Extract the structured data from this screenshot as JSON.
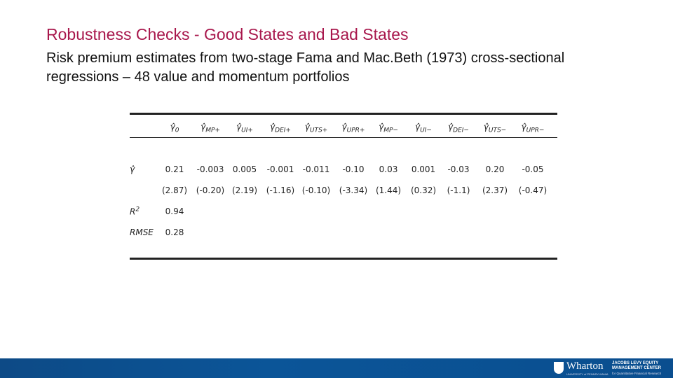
{
  "header": {
    "title": "Robustness Checks - Good States and Bad States",
    "subtitle": "Risk premium estimates from two-stage Fama and Mac.Beth (1973) cross-sectional regressions – 48 value and momentum portfolios"
  },
  "table": {
    "columns": [
      {
        "symbol": "γ̂",
        "sub": "0"
      },
      {
        "symbol": "γ̂",
        "sub": "MP+"
      },
      {
        "symbol": "γ̂",
        "sub": "UI+"
      },
      {
        "symbol": "γ̂",
        "sub": "DEI+"
      },
      {
        "symbol": "γ̂",
        "sub": "UTS+"
      },
      {
        "symbol": "γ̂",
        "sub": "UPR+"
      },
      {
        "symbol": "γ̂",
        "sub": "MP−"
      },
      {
        "symbol": "γ̂",
        "sub": "UI−"
      },
      {
        "symbol": "γ̂",
        "sub": "DEI−"
      },
      {
        "symbol": "γ̂",
        "sub": "UTS−"
      },
      {
        "symbol": "γ̂",
        "sub": "UPR−"
      }
    ],
    "rows": [
      {
        "label": {
          "text": "γ̂"
        },
        "cells": [
          "0.21",
          "-0.003",
          "0.005",
          "-0.001",
          "-0.011",
          "-0.10",
          "0.03",
          "0.001",
          "-0.03",
          "0.20",
          "-0.05"
        ]
      },
      {
        "label": null,
        "cells": [
          "(2.87)",
          "(-0.20)",
          "(2.19)",
          "(-1.16)",
          "(-0.10)",
          "(-3.34)",
          "(1.44)",
          "(0.32)",
          "(-1.1)",
          "(2.37)",
          "(-0.47)"
        ]
      },
      {
        "label": {
          "text": "R",
          "sup": "2"
        },
        "cells": [
          "0.94"
        ]
      },
      {
        "label": {
          "text": "RMSE"
        },
        "cells": [
          "0.28"
        ]
      }
    ]
  },
  "footer": {
    "logo": "Wharton",
    "university": "UNIVERSITY of PENNSYLVANIA",
    "center": "JACOBS LEVY EQUITY MANAGEMENT CENTER",
    "center_sub": "for Quantitative Financial Research"
  }
}
